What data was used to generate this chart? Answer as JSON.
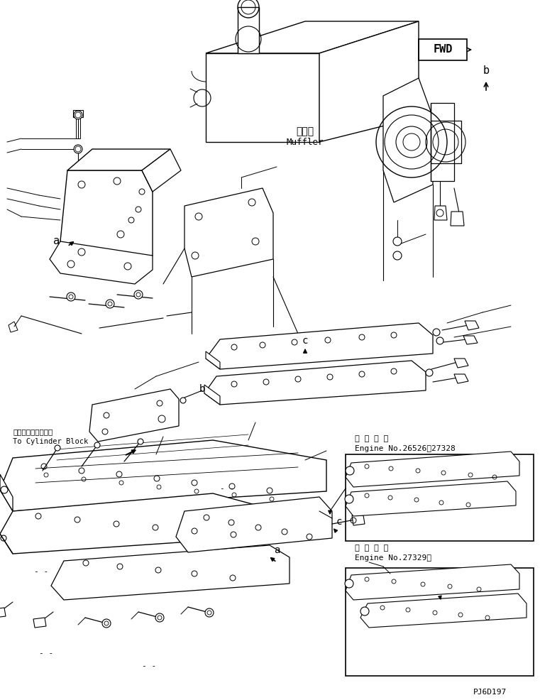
{
  "bg_color": "#ffffff",
  "line_color": "#000000",
  "fig_width": 7.61,
  "fig_height": 9.86,
  "dpi": 100,
  "texts": {
    "muffler_jp": "マフラ",
    "muffler_en": "Muffler",
    "fwd": "FWD",
    "cylinder_jp": "シリンダブロックへ",
    "cylinder_en": "To Cylinder Block",
    "engine_note1_jp": "適 用 号 機",
    "engine_note1_en": "Engine No.26526！27328",
    "engine_note2_jp": "適 用 号 機",
    "engine_note2_en": "Engine No.27329～",
    "part_id": "PJ6D197"
  }
}
